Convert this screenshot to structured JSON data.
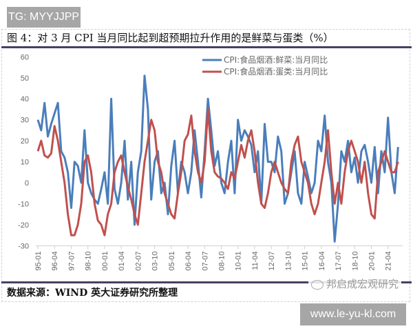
{
  "watermark_top": "TG: MYYJJPP",
  "title": "图 4：对 3 月 CPI 当月同比起到超预期拉升作用的是鲜菜与蛋类（%）",
  "source": "数据来源：WIND  英大证券研究所整理",
  "watermark_brand": "邦启成宏观研究",
  "watermark_site": "www.le-yu-kl.com",
  "chart_data": {
    "type": "line",
    "title": "图 4：对 3 月 CPI 当月同比起到超预期拉升作用的是鲜菜与蛋类（%）",
    "xlabel": "",
    "ylabel": "",
    "ylim": [
      -30,
      60
    ],
    "yticks": [
      "60",
      "50",
      "40",
      "30",
      "20",
      "10",
      "0",
      "-10",
      "-20",
      "-30"
    ],
    "xticks": [
      "95-01",
      "96-04",
      "97-07",
      "98-10",
      "00-01",
      "01-04",
      "02-07",
      "03-10",
      "05-01",
      "06-04",
      "07-07",
      "08-10",
      "10-01",
      "11-04",
      "12-07",
      "13-10",
      "15-01",
      "16-04",
      "17-07",
      "18-10",
      "20-01",
      "21-04"
    ],
    "legend_position": "top-right",
    "grid": false,
    "x_start": "1995-01",
    "x_step_months": 3,
    "series": [
      {
        "name": "CPI:食品烟酒:鲜菜:当月同比",
        "color": "#4a7ebb",
        "values": [
          30,
          25,
          38,
          22,
          28,
          33,
          38,
          15,
          12,
          5,
          -12,
          10,
          8,
          0,
          25,
          0,
          -5,
          -8,
          -10,
          -3,
          5,
          -10,
          40,
          -3,
          -10,
          0,
          20,
          -8,
          10,
          -20,
          5,
          15,
          51,
          35,
          -8,
          10,
          15,
          -5,
          0,
          -15,
          8,
          20,
          -5,
          10,
          5,
          -5,
          5,
          25,
          10,
          -7,
          15,
          40,
          25,
          8,
          15,
          0,
          -5,
          10,
          20,
          -5,
          30,
          20,
          25,
          22,
          18,
          5,
          15,
          -10,
          28,
          10,
          10,
          5,
          22,
          15,
          -10,
          -5,
          5,
          15,
          -5,
          -10,
          10,
          3,
          -5,
          0,
          20,
          15,
          32,
          10,
          0,
          -28,
          -10,
          15,
          10,
          20,
          5,
          12,
          0,
          15,
          18,
          10,
          0,
          17,
          -5,
          15,
          5,
          31,
          5,
          -5,
          17
        ]
      },
      {
        "name": "CPI:食品烟酒:蛋类:当月同比",
        "color": "#c0504d",
        "values": [
          15,
          20,
          13,
          12,
          14,
          27,
          20,
          10,
          0,
          -15,
          -25,
          -25,
          -20,
          -10,
          10,
          13,
          5,
          -10,
          -18,
          -20,
          -25,
          -15,
          -10,
          5,
          10,
          13,
          5,
          -2,
          -8,
          -15,
          -20,
          -5,
          10,
          20,
          30,
          25,
          10,
          5,
          -5,
          -10,
          -15,
          -17,
          -5,
          5,
          20,
          23,
          32,
          15,
          5,
          0,
          10,
          35,
          15,
          5,
          3,
          2,
          0,
          -3,
          5,
          2,
          10,
          18,
          12,
          20,
          25,
          15,
          0,
          -10,
          -12,
          -5,
          5,
          10,
          5,
          0,
          -3,
          -5,
          10,
          18,
          22,
          10,
          5,
          0,
          -10,
          -15,
          -10,
          0,
          10,
          25,
          5,
          -10,
          0,
          -10,
          5,
          15,
          20,
          15,
          10,
          0,
          10,
          -5,
          -15,
          -17,
          5,
          10,
          15,
          10,
          5,
          5,
          10
        ]
      }
    ]
  }
}
